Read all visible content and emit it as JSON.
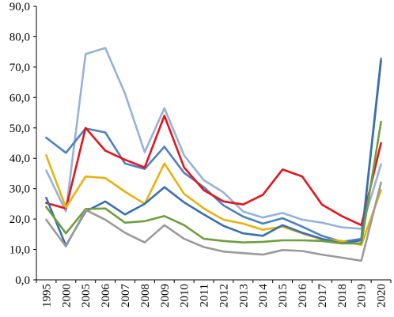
{
  "chart_data": {
    "type": "line",
    "title": "",
    "xlabel": "",
    "ylabel": "",
    "ylim": [
      0,
      90
    ],
    "yticks": [
      "0,0",
      "10,0",
      "20,0",
      "30,0",
      "40,0",
      "50,0",
      "60,0",
      "70,0",
      "80,0",
      "90,0"
    ],
    "grid": false,
    "legend": "none",
    "categories": [
      "1995",
      "2000",
      "2005",
      "2006",
      "2007",
      "2008",
      "2009",
      "2010",
      "2011",
      "2012",
      "2013",
      "2014",
      "2015",
      "2016",
      "2017",
      "2018",
      "2019",
      "2020"
    ],
    "series": [
      {
        "color": "#95b3d7",
        "values": [
          36.0,
          22.5,
          74.3,
          76.3,
          61.3,
          42.0,
          56.5,
          41.0,
          32.8,
          28.8,
          22.5,
          20.5,
          22.0,
          19.8,
          18.8,
          17.3,
          16.8,
          38.0
        ]
      },
      {
        "color": "#4f81bd",
        "values": [
          46.8,
          41.8,
          49.8,
          48.5,
          38.3,
          36.5,
          43.8,
          35.2,
          30.5,
          24.5,
          20.8,
          18.5,
          20.3,
          17.5,
          14.5,
          12.5,
          13.5,
          72.8
        ]
      },
      {
        "color": "#e5141b",
        "values": [
          25.3,
          23.5,
          50.0,
          42.5,
          39.5,
          37.0,
          54.0,
          37.0,
          29.5,
          25.8,
          24.8,
          28.0,
          36.3,
          34.0,
          24.8,
          21.0,
          18.0,
          45.0
        ]
      },
      {
        "color": "#e8b20e",
        "values": [
          41.0,
          23.8,
          34.0,
          33.5,
          29.0,
          25.0,
          38.3,
          28.3,
          23.5,
          19.8,
          18.5,
          16.5,
          17.5,
          15.3,
          13.3,
          12.8,
          11.5,
          29.5
        ]
      },
      {
        "color": "#3a6fb0",
        "values": [
          27.0,
          11.3,
          22.5,
          25.8,
          21.5,
          25.0,
          30.5,
          25.5,
          21.5,
          17.8,
          15.3,
          14.5,
          18.0,
          15.5,
          13.5,
          12.0,
          13.0,
          72.0
        ]
      },
      {
        "color": "#6e9e3d",
        "values": [
          24.0,
          15.3,
          23.3,
          23.5,
          18.8,
          19.3,
          21.0,
          18.0,
          13.5,
          12.8,
          12.3,
          12.5,
          13.0,
          13.0,
          12.8,
          12.0,
          12.0,
          52.0
        ]
      },
      {
        "color": "#9a9a9a",
        "values": [
          19.8,
          11.0,
          23.0,
          19.8,
          15.5,
          12.3,
          18.0,
          13.5,
          10.8,
          9.3,
          8.8,
          8.3,
          9.8,
          9.5,
          8.3,
          7.3,
          6.3,
          32.0
        ]
      }
    ]
  }
}
